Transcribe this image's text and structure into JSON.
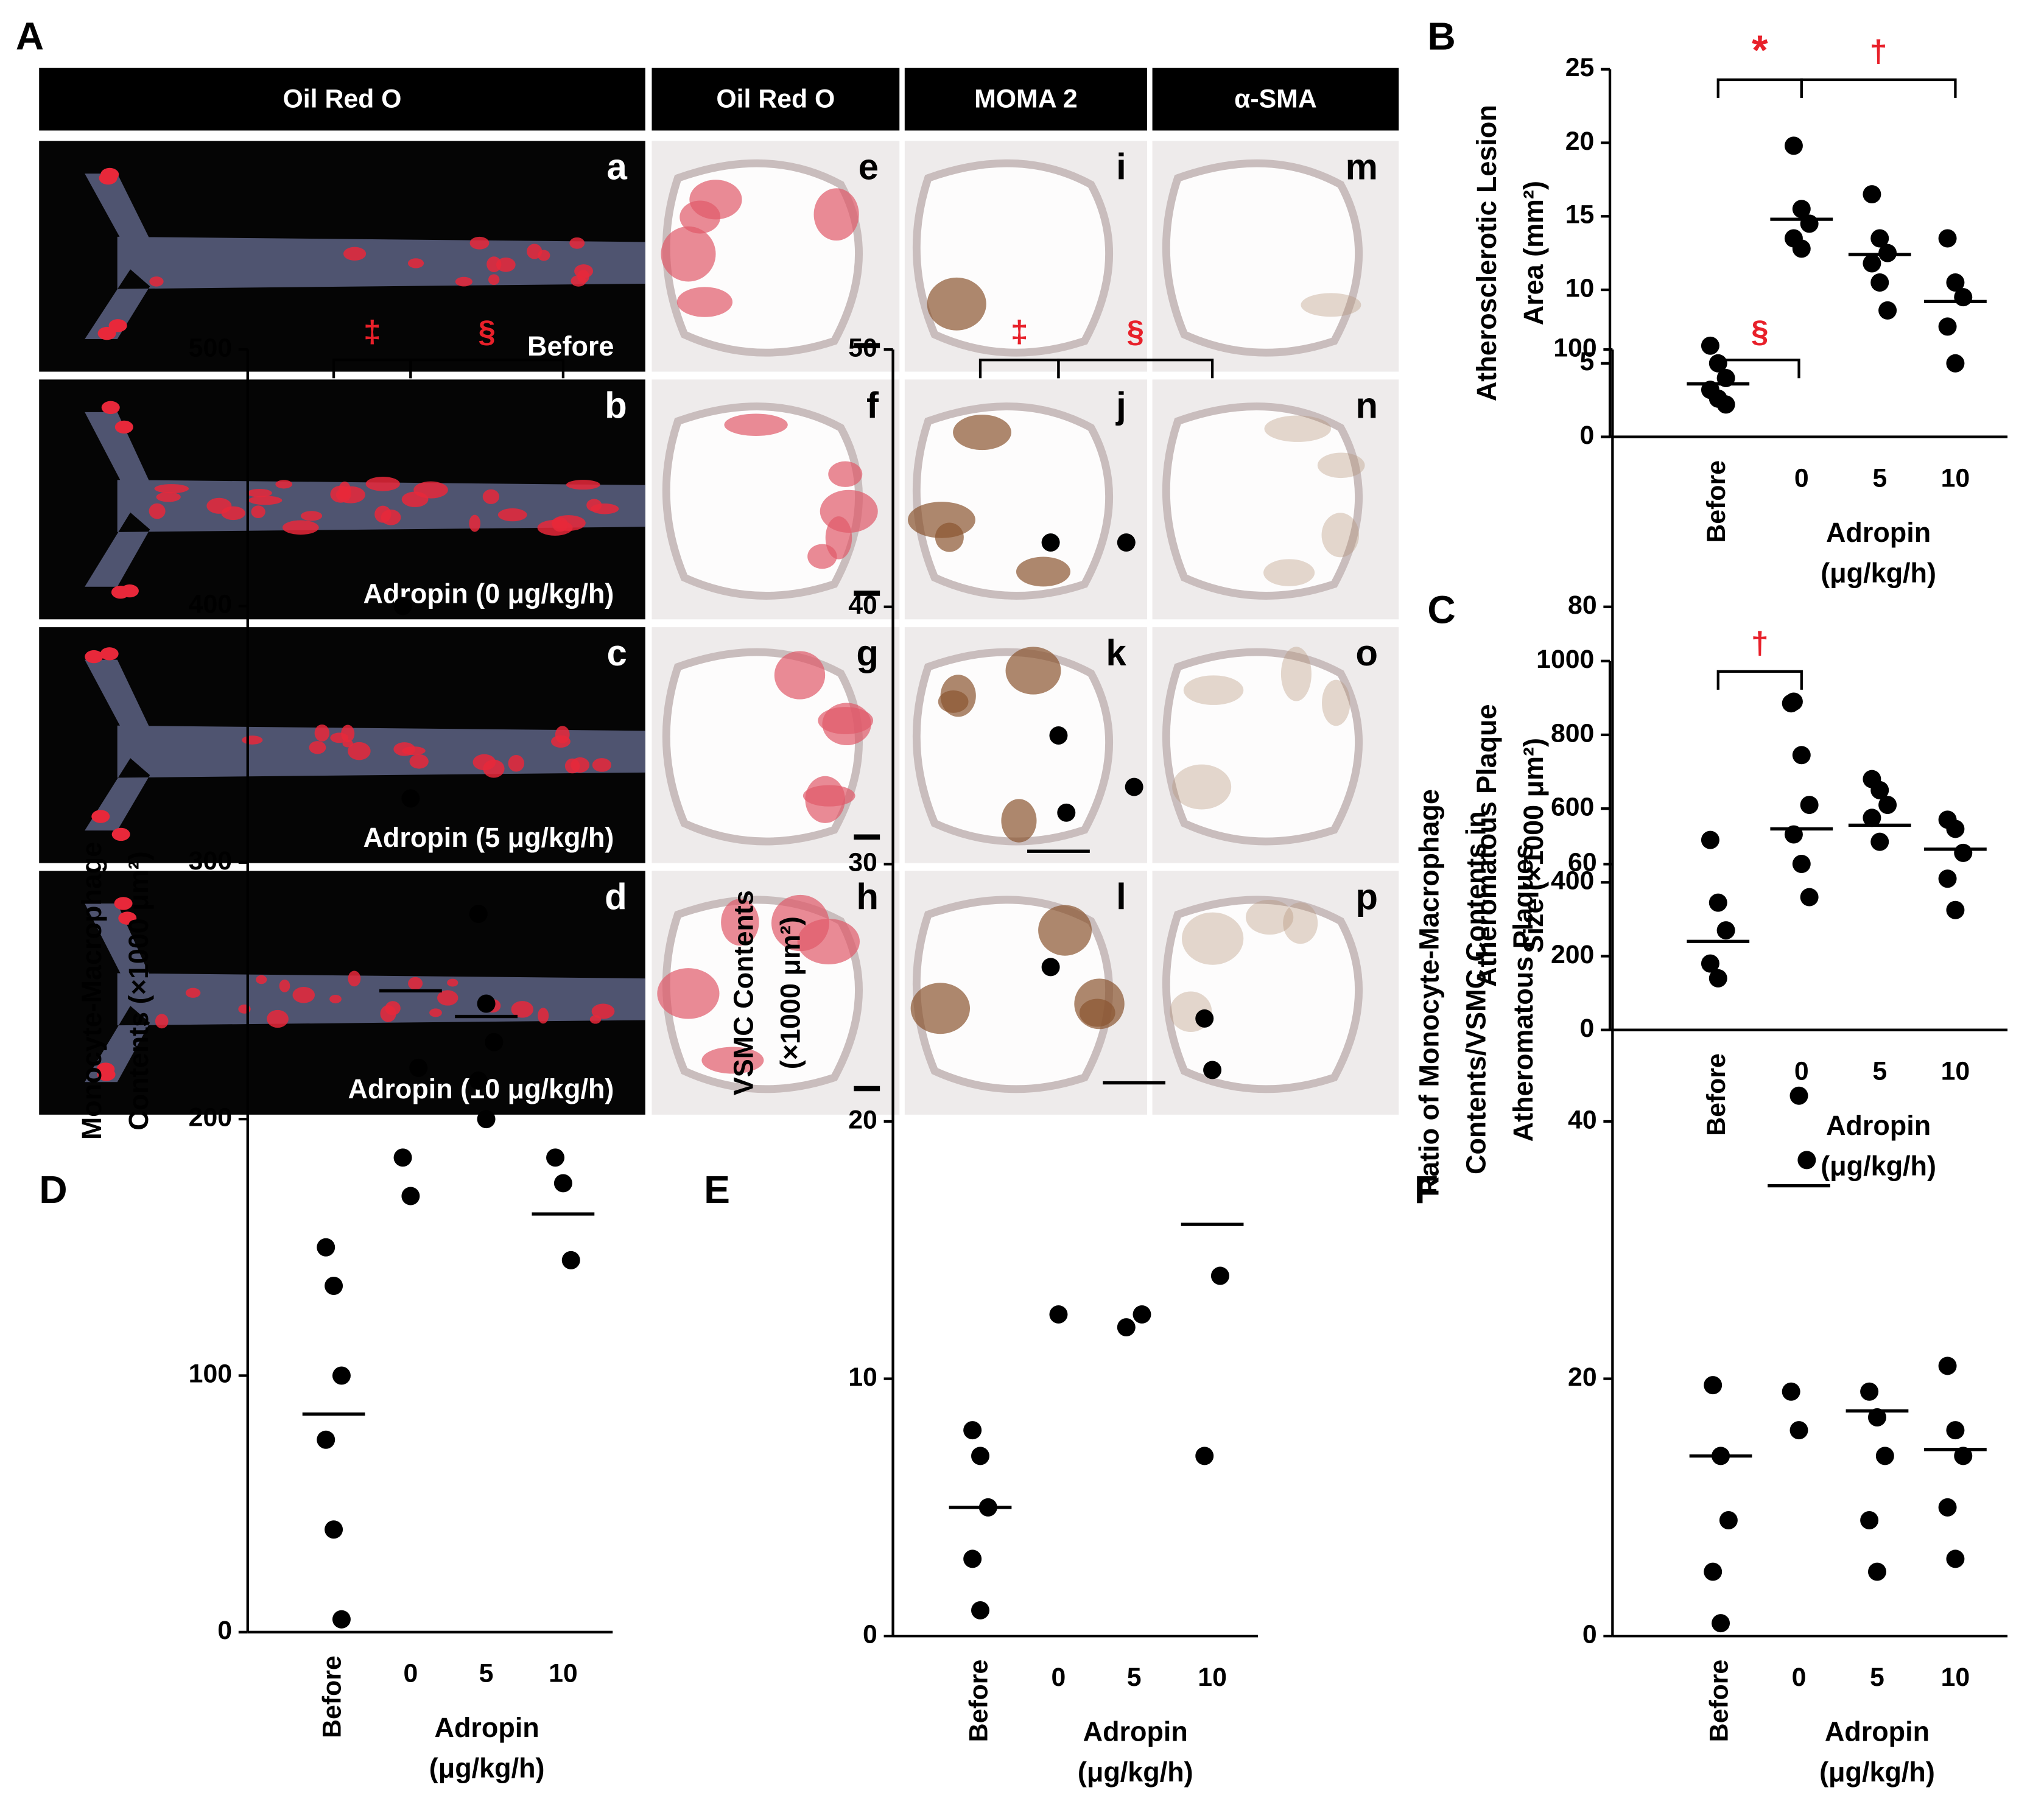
{
  "panel_a": {
    "label": "A",
    "headers": [
      "Oil Red O",
      "Oil Red O",
      "MOMA 2",
      "α-SMA"
    ],
    "image_labels": [
      [
        "a",
        "b",
        "c",
        "d"
      ],
      [
        "e",
        "f",
        "g",
        "h"
      ],
      [
        "i",
        "j",
        "k",
        "l"
      ],
      [
        "m",
        "n",
        "o",
        "p"
      ]
    ],
    "captions": [
      "Before",
      "Adropin (0 μg/kg/h)",
      "Adropin (5 μg/kg/h)",
      "Adropin (10 μg/kg/h)"
    ]
  },
  "chart_data": [
    {
      "type": "dot",
      "label": "B",
      "y_label": [
        "Atherosclerotic Lesion",
        "Area (mm²)"
      ],
      "x_label": [
        "Adropin",
        "(μg/kg/h)"
      ],
      "categories": [
        "Before",
        "0",
        "5",
        "10"
      ],
      "values": [
        [
          6.2,
          5.0,
          4.0,
          3.2,
          2.6,
          2.2
        ],
        [
          19.8,
          15.5,
          14.5,
          13.5,
          12.8
        ],
        [
          16.5,
          13.5,
          12.5,
          11.8,
          10.5,
          8.6
        ],
        [
          13.5,
          10.5,
          9.5,
          7.5,
          5.0
        ]
      ],
      "means": [
        3.6,
        14.8,
        12.4,
        9.2
      ],
      "ylim": [
        0,
        25
      ],
      "yticks": [
        0,
        5,
        10,
        15,
        20,
        25
      ],
      "color": "#000000",
      "annotation_color": "#e8202a",
      "brackets": [
        {
          "text": "*",
          "from": 0,
          "to": 1
        },
        {
          "text": "†",
          "from": 1,
          "to": 3
        }
      ]
    },
    {
      "type": "dot",
      "label": "C",
      "y_label": [
        "Atheromatous Plaque",
        "Size (×1000 μm²)"
      ],
      "x_label": [
        "Adropin",
        "(μg/kg/h)"
      ],
      "categories": [
        "Before",
        "0",
        "5",
        "10"
      ],
      "values": [
        [
          515,
          345,
          270,
          180,
          140
        ],
        [
          890,
          745,
          610,
          530,
          450,
          360
        ],
        [
          680,
          650,
          610,
          575,
          510
        ],
        [
          570,
          545,
          480,
          410,
          325
        ]
      ],
      "means": [
        240,
        545,
        555,
        490
      ],
      "ylim": [
        0,
        1000
      ],
      "yticks": [
        0,
        200,
        400,
        600,
        800,
        1000
      ],
      "color": "#000000",
      "annotation_color": "#e8202a",
      "brackets": [
        {
          "text": "†",
          "from": 0,
          "to": 1
        }
      ]
    },
    {
      "type": "dot",
      "label": "D",
      "y_label": [
        "Monocyte-Macrophage",
        "Contents (×1000 μm²)"
      ],
      "x_label": [
        "Adropin",
        "(μg/kg/h)"
      ],
      "categories": [
        "Before",
        "0",
        "5",
        "10"
      ],
      "values": [
        [
          150,
          135,
          100,
          75,
          40,
          5
        ],
        [
          400,
          325,
          220,
          185,
          170
        ],
        [
          280,
          245,
          230,
          215,
          200
        ],
        [
          185,
          175,
          145
        ]
      ],
      "means": [
        85,
        250,
        240,
        163
      ],
      "ylim": [
        0,
        500
      ],
      "yticks": [
        0,
        100,
        200,
        300,
        400,
        500
      ],
      "color": "#000000",
      "annotation_color": "#e8202a",
      "brackets": [
        {
          "text": "‡",
          "from": 0,
          "to": 1
        },
        {
          "text": "§",
          "from": 1,
          "to": 3
        }
      ]
    },
    {
      "type": "dot",
      "label": "E",
      "y_label": [
        "VSMC Contents",
        "(×1000 μm²)"
      ],
      "x_label": [
        "Adropin",
        "(μg/kg/h)"
      ],
      "categories": [
        "Before",
        "0",
        "5",
        "10"
      ],
      "values": [
        [
          8,
          7,
          5,
          3,
          1
        ],
        [
          42.5,
          35,
          32,
          26,
          12.5
        ],
        [
          42.5,
          33,
          12.5,
          12
        ],
        [
          24,
          22,
          14,
          7
        ]
      ],
      "means": [
        5,
        30.5,
        21.5,
        16
      ],
      "ylim": [
        0,
        50
      ],
      "yticks": [
        0,
        10,
        20,
        30,
        40,
        50
      ],
      "color": "#000000",
      "annotation_color": "#e8202a",
      "brackets": [
        {
          "text": "‡",
          "from": 0,
          "to": 1
        },
        {
          "text": "§",
          "from": 1,
          "to": 3
        }
      ]
    },
    {
      "type": "dot",
      "label": "F",
      "y_label": [
        "Ratio of Monocyte-Macrophage",
        "Contents/VSMC Contents in",
        "Atheromatous Plaques"
      ],
      "x_label": [
        "Adropin",
        "(μg/kg/h)"
      ],
      "categories": [
        "Before",
        "0",
        "5",
        "10"
      ],
      "values": [
        [
          19.5,
          14,
          9,
          5,
          1
        ],
        [
          72.5,
          42,
          37,
          19,
          16
        ],
        [
          19,
          17,
          14,
          9,
          5
        ],
        [
          21,
          16,
          14,
          10,
          6
        ]
      ],
      "means": [
        14,
        35,
        17.5,
        14.5
      ],
      "ylim": [
        0,
        100
      ],
      "yticks": [
        0,
        20,
        40,
        60,
        80,
        100
      ],
      "color": "#000000",
      "annotation_color": "#e8202a",
      "brackets": [
        {
          "text": "§",
          "from": 0,
          "to": 1
        }
      ]
    }
  ]
}
